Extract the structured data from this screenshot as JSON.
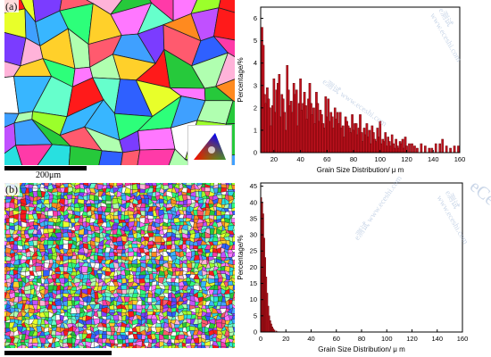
{
  "figure": {
    "panels": [
      {
        "label": "(a)",
        "scale_bar_text": "200μm"
      },
      {
        "label": "(b)",
        "scale_bar_text": ""
      }
    ],
    "watermarks": [
      "e测试 www.eceshi.com",
      "eCe"
    ]
  },
  "colors": {
    "bar_fill": "#c1121f",
    "bar_edge": "#5a0000",
    "axis": "#000000"
  },
  "chart_data": [
    {
      "type": "bar",
      "title": "",
      "xlabel": "Grain Size Distribution/ μ m",
      "ylabel": "Percentage/%",
      "xlim": [
        10,
        160
      ],
      "ylim": [
        0,
        6.5
      ],
      "bin_width": 1.5,
      "xticks": [
        20,
        40,
        60,
        80,
        100,
        120,
        140,
        160
      ],
      "yticks": [
        0,
        1,
        2,
        3,
        4,
        5,
        6
      ],
      "x": [
        11,
        12,
        13,
        14,
        15,
        16,
        17,
        18,
        19,
        20,
        21,
        22,
        23,
        24,
        25,
        26,
        27,
        28,
        29,
        30,
        31,
        32,
        33,
        34,
        35,
        36,
        37,
        38,
        39,
        40,
        41,
        42,
        43,
        44,
        45,
        46,
        47,
        48,
        49,
        50,
        51,
        52,
        53,
        54,
        55,
        56,
        57,
        58,
        59,
        60,
        61,
        62,
        63,
        64,
        65,
        66,
        67,
        68,
        69,
        70,
        71,
        72,
        73,
        74,
        75,
        76,
        77,
        78,
        79,
        80,
        81,
        82,
        83,
        84,
        85,
        86,
        87,
        88,
        89,
        90,
        91,
        92,
        93,
        94,
        95,
        96,
        97,
        98,
        99,
        100,
        101,
        102,
        103,
        104,
        105,
        106,
        107,
        108,
        109,
        110,
        111,
        112,
        113,
        114,
        115,
        116,
        117,
        118,
        119,
        120,
        122,
        124,
        126,
        128,
        131,
        134,
        137,
        139,
        142,
        145,
        147,
        150,
        153,
        156,
        159
      ],
      "values": [
        5.6,
        4.8,
        2.6,
        2.2,
        2.9,
        2.4,
        2.0,
        1.2,
        2.1,
        3.3,
        1.8,
        2.8,
        3.1,
        3.5,
        1.6,
        2.6,
        2.4,
        1.8,
        1.0,
        3.9,
        2.8,
        2.1,
        2.3,
        1.8,
        3.1,
        2.6,
        2.8,
        1.2,
        2.2,
        3.3,
        1.9,
        2.2,
        2.7,
        2.1,
        1.5,
        2.4,
        3.1,
        2.2,
        1.7,
        2.0,
        1.3,
        2.7,
        2.2,
        1.4,
        1.9,
        1.7,
        1.3,
        1.1,
        2.5,
        1.6,
        2.4,
        1.4,
        1.8,
        1.6,
        1.1,
        2.0,
        1.5,
        1.8,
        1.3,
        1.8,
        1.1,
        1.2,
        0.7,
        1.6,
        1.4,
        1.2,
        1.1,
        0.9,
        1.7,
        1.0,
        1.3,
        1.3,
        0.8,
        1.1,
        1.7,
        0.9,
        0.5,
        1.1,
        0.8,
        1.3,
        0.7,
        1.0,
        0.4,
        1.2,
        0.9,
        0.6,
        0.5,
        1.1,
        0.7,
        1.4,
        0.4,
        0.6,
        0.5,
        0.9,
        0.3,
        0.7,
        0.5,
        0.3,
        0.8,
        0.4,
        0.2,
        0.6,
        0.3,
        0.2,
        0.5,
        0.4,
        0.6,
        0.2,
        0.7,
        0.3,
        0.4,
        0.4,
        0.3,
        0.2,
        0.4,
        0.3,
        0.2,
        0.2,
        0.4,
        0.4,
        0.6,
        0.3,
        0.2,
        0.3,
        0.3
      ]
    },
    {
      "type": "bar",
      "title": "",
      "xlabel": "Grain Size Distribution/ μ m",
      "ylabel": "Percentage/%",
      "xlim": [
        0,
        160
      ],
      "ylim": [
        0,
        46
      ],
      "bin_width": 0.8,
      "xticks": [
        0,
        20,
        40,
        60,
        80,
        100,
        120,
        140,
        160
      ],
      "yticks": [
        0,
        5,
        10,
        15,
        20,
        25,
        30,
        35,
        40,
        45
      ],
      "x": [
        0.5,
        1.3,
        2.1,
        2.9,
        3.7,
        4.5,
        5.3,
        6.1,
        6.9,
        7.7,
        8.5,
        9.3,
        10.1,
        11,
        12.5,
        14
      ],
      "values": [
        41.5,
        40.0,
        36.5,
        29.0,
        23.0,
        17.0,
        12.0,
        8.0,
        5.0,
        3.5,
        2.5,
        1.6,
        1.0,
        0.6,
        0.3,
        0.1
      ]
    }
  ]
}
